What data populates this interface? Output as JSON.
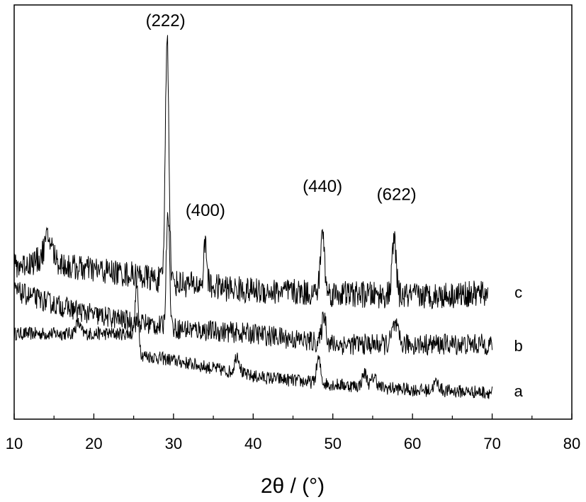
{
  "chart_data": {
    "type": "line",
    "title": "",
    "xlabel": "2θ / (°)",
    "ylabel": "",
    "xlim": [
      10,
      80
    ],
    "x_ticks": [
      10,
      20,
      30,
      40,
      50,
      60,
      70,
      80
    ],
    "y_ticks": [],
    "grid": false,
    "legend": "none",
    "line_color": "#000000",
    "series": [
      {
        "name": "a",
        "baseline": [
          [
            10,
            0.27
          ],
          [
            25,
            0.27
          ],
          [
            26,
            0.19
          ],
          [
            30,
            0.17
          ],
          [
            40,
            0.11
          ],
          [
            50,
            0.08
          ],
          [
            60,
            0.06
          ],
          [
            70,
            0.05
          ]
        ],
        "noise": 0.025,
        "peaks": [
          {
            "x": 18.0,
            "height": 0.04,
            "width": 0.3
          },
          {
            "x": 25.4,
            "height": 0.21,
            "width": 0.2
          },
          {
            "x": 38.0,
            "height": 0.07,
            "width": 0.3
          },
          {
            "x": 48.2,
            "height": 0.09,
            "width": 0.25
          },
          {
            "x": 54.0,
            "height": 0.05,
            "width": 0.3
          },
          {
            "x": 55.2,
            "height": 0.04,
            "width": 0.3
          },
          {
            "x": 63.0,
            "height": 0.03,
            "width": 0.35
          }
        ]
      },
      {
        "name": "b",
        "baseline": [
          [
            10,
            0.43
          ],
          [
            15,
            0.38
          ],
          [
            20,
            0.34
          ],
          [
            30,
            0.29
          ],
          [
            40,
            0.27
          ],
          [
            50,
            0.23
          ],
          [
            60,
            0.23
          ],
          [
            70,
            0.23
          ]
        ],
        "noise": 0.04,
        "peaks": [
          {
            "x": 29.3,
            "height": 0.45,
            "width": 0.2
          },
          {
            "x": 48.9,
            "height": 0.11,
            "width": 0.25
          },
          {
            "x": 57.8,
            "height": 0.07,
            "width": 0.35
          }
        ]
      },
      {
        "name": "c",
        "baseline": [
          [
            10,
            0.52
          ],
          [
            14,
            0.55
          ],
          [
            17,
            0.52
          ],
          [
            25,
            0.49
          ],
          [
            30,
            0.46
          ],
          [
            40,
            0.43
          ],
          [
            50,
            0.42
          ],
          [
            60,
            0.41
          ],
          [
            69.5,
            0.42
          ]
        ],
        "noise": 0.05,
        "peaks": [
          {
            "x": 14.3,
            "height": 0.08,
            "width": 0.5
          },
          {
            "x": 29.2,
            "height": 0.92,
            "width": 0.22
          },
          {
            "x": 34.0,
            "height": 0.16,
            "width": 0.2
          },
          {
            "x": 48.7,
            "height": 0.23,
            "width": 0.25
          },
          {
            "x": 57.7,
            "height": 0.21,
            "width": 0.25
          }
        ]
      }
    ],
    "annotations": [
      {
        "text": "(222)",
        "x": 29.0,
        "y": 1.42
      },
      {
        "text": "(400)",
        "x": 34.0,
        "y": 0.71
      },
      {
        "text": "(440)",
        "x": 48.7,
        "y": 0.8
      },
      {
        "text": "(622)",
        "x": 58.0,
        "y": 0.77
      }
    ],
    "series_labels": [
      {
        "text": "c",
        "x": 73.3,
        "y": 0.42
      },
      {
        "text": "b",
        "x": 73.3,
        "y": 0.22
      },
      {
        "text": "a",
        "x": 73.3,
        "y": 0.05
      }
    ]
  }
}
